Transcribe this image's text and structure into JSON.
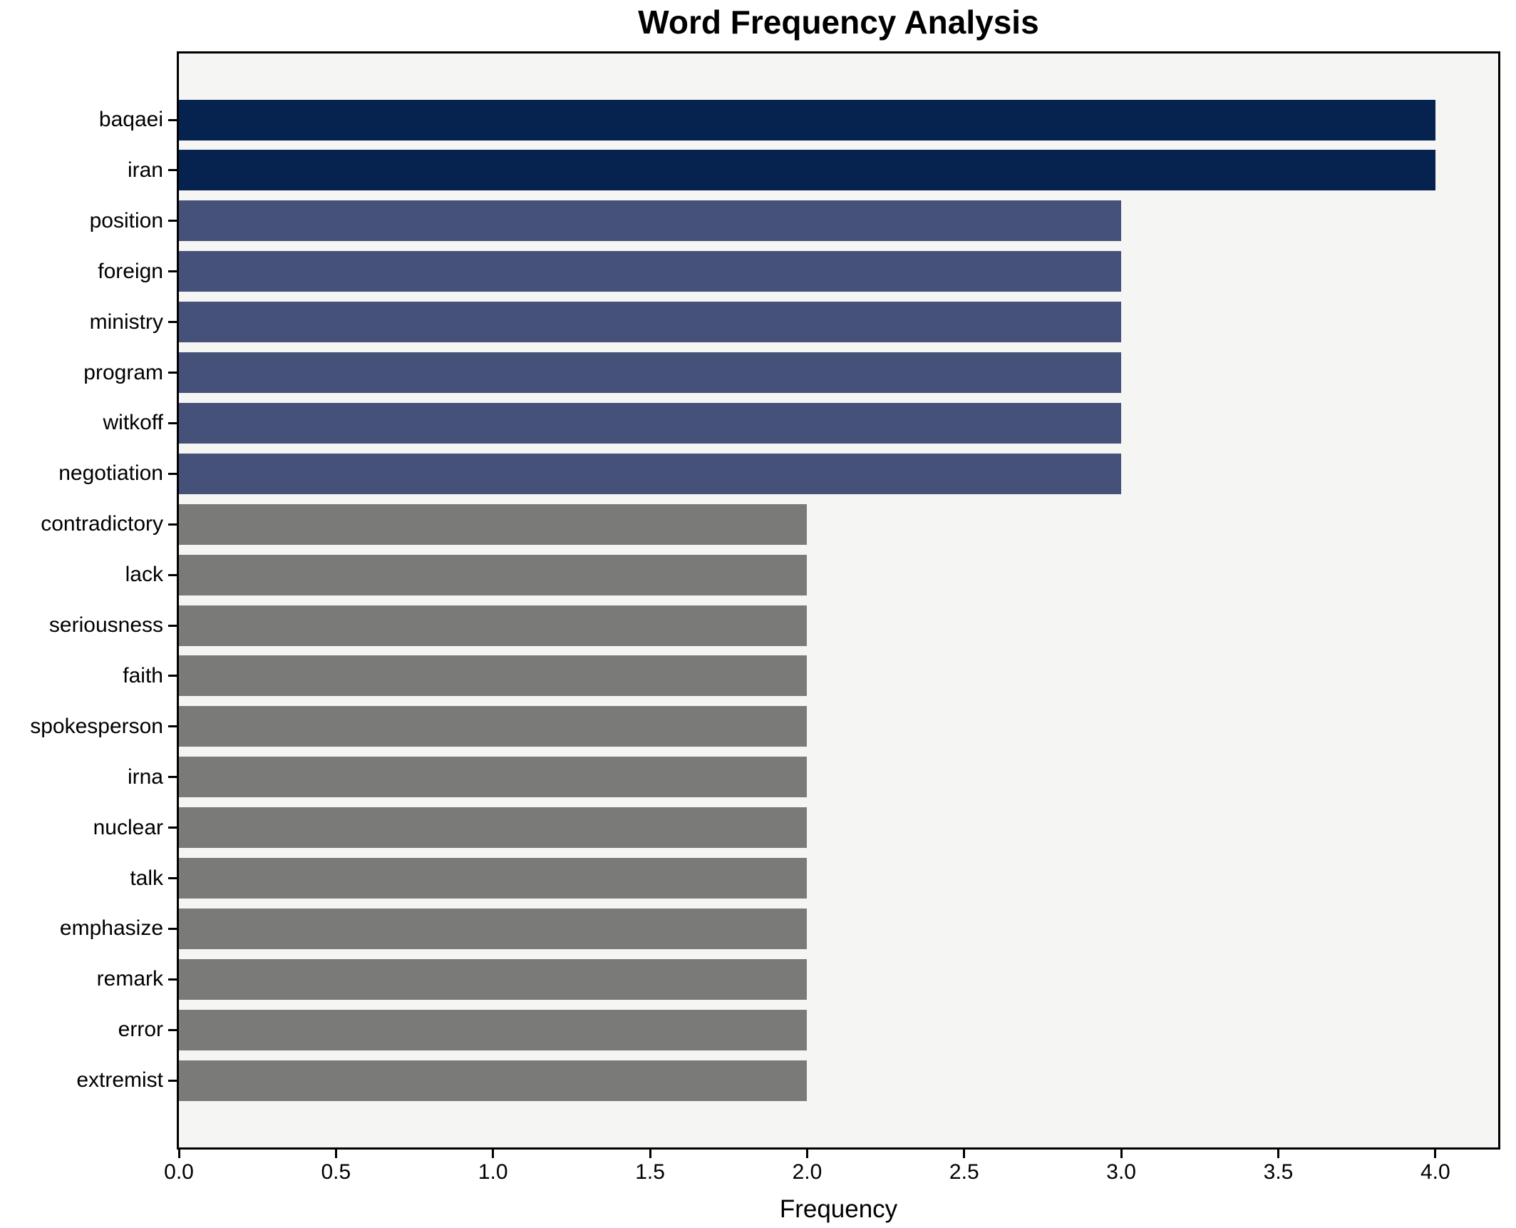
{
  "title": "Word Frequency Analysis",
  "xlabel": "Frequency",
  "colors": {
    "bar_freq_4": "#05234E",
    "bar_freq_3": "#46517A",
    "bar_freq_2": "#7A7A78",
    "plot_background": "#F5F5F4",
    "figure_background": "#FFFFFF",
    "axis_color": "#000000"
  },
  "chart_data": {
    "type": "bar",
    "orientation": "horizontal",
    "title": "Word Frequency Analysis",
    "xlabel": "Frequency",
    "ylabel": "",
    "xlim": [
      0,
      4.2
    ],
    "grid": false,
    "legend": false,
    "xticks": {
      "values": [
        0,
        0.5,
        1,
        1.5,
        2,
        2.5,
        3,
        3.5,
        4
      ],
      "labels": [
        "0.0",
        "0.5",
        "1.0",
        "1.5",
        "2.0",
        "2.5",
        "3.0",
        "3.5",
        "4.0"
      ]
    },
    "categories": [
      "baqaei",
      "iran",
      "position",
      "foreign",
      "ministry",
      "program",
      "witkoff",
      "negotiation",
      "contradictory",
      "lack",
      "seriousness",
      "faith",
      "spokesperson",
      "irna",
      "nuclear",
      "talk",
      "emphasize",
      "remark",
      "error",
      "extremist"
    ],
    "values": [
      4,
      4,
      3,
      3,
      3,
      3,
      3,
      3,
      2,
      2,
      2,
      2,
      2,
      2,
      2,
      2,
      2,
      2,
      2,
      2
    ],
    "bar_colors": [
      "#05234E",
      "#05234E",
      "#46517A",
      "#46517A",
      "#46517A",
      "#46517A",
      "#46517A",
      "#46517A",
      "#7A7A78",
      "#7A7A78",
      "#7A7A78",
      "#7A7A78",
      "#7A7A78",
      "#7A7A78",
      "#7A7A78",
      "#7A7A78",
      "#7A7A78",
      "#7A7A78",
      "#7A7A78",
      "#7A7A78"
    ]
  }
}
